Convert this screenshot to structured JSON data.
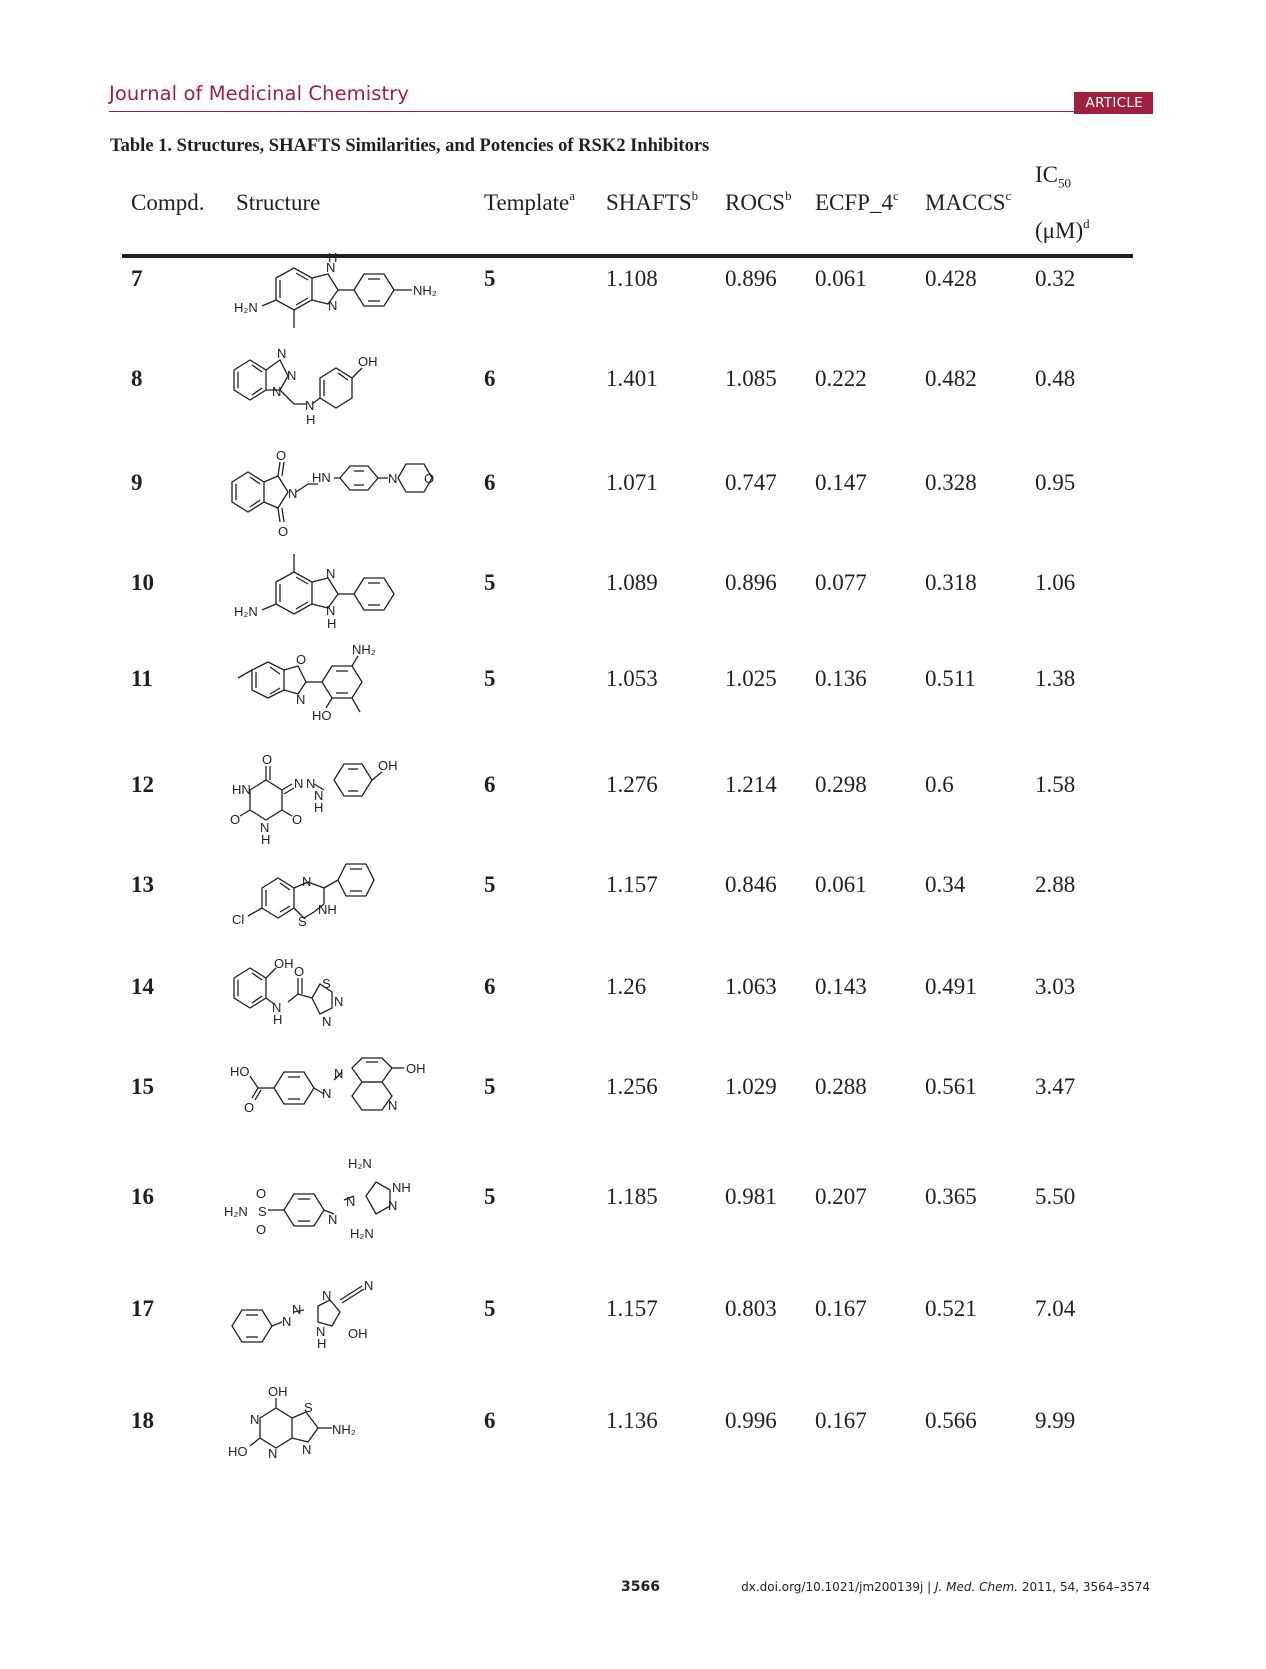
{
  "header": {
    "journal": "Journal of Medicinal Chemistry",
    "badge": "ARTICLE"
  },
  "caption": "Table 1.  Structures, SHAFTS Similarities, and Potencies of RSK2 Inhibitors",
  "columns": {
    "compd": "Compd.",
    "structure": "Structure",
    "template": "Template",
    "template_sup": "a",
    "shafts": "SHAFTS",
    "shafts_sup": "b",
    "rocs": "ROCS",
    "rocs_sup": "b",
    "ecfp": "ECFP_4",
    "ecfp_sup": "c",
    "maccs": "MACCS",
    "maccs_sup": "c",
    "ic50": "IC",
    "ic50_sub": "50",
    "ic50_unit": "(μM)",
    "ic50_sup": "d"
  },
  "rows": [
    {
      "compd": "7",
      "template": "5",
      "shafts": "1.108",
      "rocs": "0.896",
      "ecfp": "0.061",
      "maccs": "0.428",
      "ic50": "0.32"
    },
    {
      "compd": "8",
      "template": "6",
      "shafts": "1.401",
      "rocs": "1.085",
      "ecfp": "0.222",
      "maccs": "0.482",
      "ic50": "0.48"
    },
    {
      "compd": "9",
      "template": "6",
      "shafts": "1.071",
      "rocs": "0.747",
      "ecfp": "0.147",
      "maccs": "0.328",
      "ic50": "0.95"
    },
    {
      "compd": "10",
      "template": "5",
      "shafts": "1.089",
      "rocs": "0.896",
      "ecfp": "0.077",
      "maccs": "0.318",
      "ic50": "1.06"
    },
    {
      "compd": "11",
      "template": "5",
      "shafts": "1.053",
      "rocs": "1.025",
      "ecfp": "0.136",
      "maccs": "0.511",
      "ic50": "1.38"
    },
    {
      "compd": "12",
      "template": "6",
      "shafts": "1.276",
      "rocs": "1.214",
      "ecfp": "0.298",
      "maccs": "0.6",
      "ic50": "1.58"
    },
    {
      "compd": "13",
      "template": "5",
      "shafts": "1.157",
      "rocs": "0.846",
      "ecfp": "0.061",
      "maccs": "0.34",
      "ic50": "2.88"
    },
    {
      "compd": "14",
      "template": "6",
      "shafts": "1.26",
      "rocs": "1.063",
      "ecfp": "0.143",
      "maccs": "0.491",
      "ic50": "3.03"
    },
    {
      "compd": "15",
      "template": "5",
      "shafts": "1.256",
      "rocs": "1.029",
      "ecfp": "0.288",
      "maccs": "0.561",
      "ic50": "3.47"
    },
    {
      "compd": "16",
      "template": "5",
      "shafts": "1.185",
      "rocs": "0.981",
      "ecfp": "0.207",
      "maccs": "0.365",
      "ic50": "5.50"
    },
    {
      "compd": "17",
      "template": "5",
      "shafts": "1.157",
      "rocs": "0.803",
      "ecfp": "0.167",
      "maccs": "0.521",
      "ic50": "7.04"
    },
    {
      "compd": "18",
      "template": "6",
      "shafts": "1.136",
      "rocs": "0.996",
      "ecfp": "0.167",
      "maccs": "0.566",
      "ic50": "9.99"
    }
  ],
  "structure_labels": {
    "s7": {
      "nh": "H",
      "n1": "N",
      "n2": "N",
      "nh2": "NH₂",
      "h2n": "H₂N"
    },
    "s8": {
      "n1": "N",
      "n2": "N",
      "n3": "N",
      "oh": "OH",
      "nh_n": "N",
      "nh_h": "H"
    },
    "s9": {
      "o1": "O",
      "o2": "O",
      "n": "N",
      "hn": "HN",
      "mn": "N",
      "mo": "O"
    },
    "s10": {
      "n": "N",
      "nh_n": "N",
      "nh_h": "H",
      "h2n": "H₂N"
    },
    "s11": {
      "o": "O",
      "n": "N",
      "nh2": "NH₂",
      "ho": "HO"
    },
    "s12": {
      "o1": "O",
      "o2": "O",
      "o3": "O",
      "hn": "HN",
      "nh_n": "N",
      "nh_h": "H",
      "n1": "N",
      "n2": "N",
      "n3h_n": "N",
      "n3h_h": "H",
      "oh": "OH"
    },
    "s13": {
      "n": "N",
      "nh": "NH",
      "s": "S",
      "cl": "Cl"
    },
    "s14": {
      "oh": "OH",
      "o": "O",
      "nh_n": "N",
      "nh_h": "H",
      "s": "S",
      "n1": "N",
      "n2": "N"
    },
    "s15": {
      "ho": "HO",
      "o": "O",
      "n1": "N",
      "n2": "N",
      "oh": "OH",
      "nq": "N"
    },
    "s16": {
      "h2n_top": "H₂N",
      "nh": "NH",
      "n": "N",
      "n1": "N",
      "n2": "N",
      "h2n_bot": "H₂N",
      "o1": "O",
      "o2": "O",
      "s": "S",
      "h2n_s": "H₂N"
    },
    "s17": {
      "n1": "N",
      "n2": "N",
      "n3": "N",
      "nh_n": "N",
      "nh_h": "H",
      "cn": "N",
      "oh": "OH"
    },
    "s18": {
      "oh": "OH",
      "n1": "N",
      "s": "S",
      "nh2": "NH₂",
      "ho": "HO",
      "n2": "N",
      "n3": "N"
    }
  },
  "footer": {
    "page": "3566",
    "doi": "dx.doi.org/10.1021/jm200139j |",
    "journal_abbr": "J. Med. Chem.",
    "cite": "2011, 54, 3564–3574"
  }
}
